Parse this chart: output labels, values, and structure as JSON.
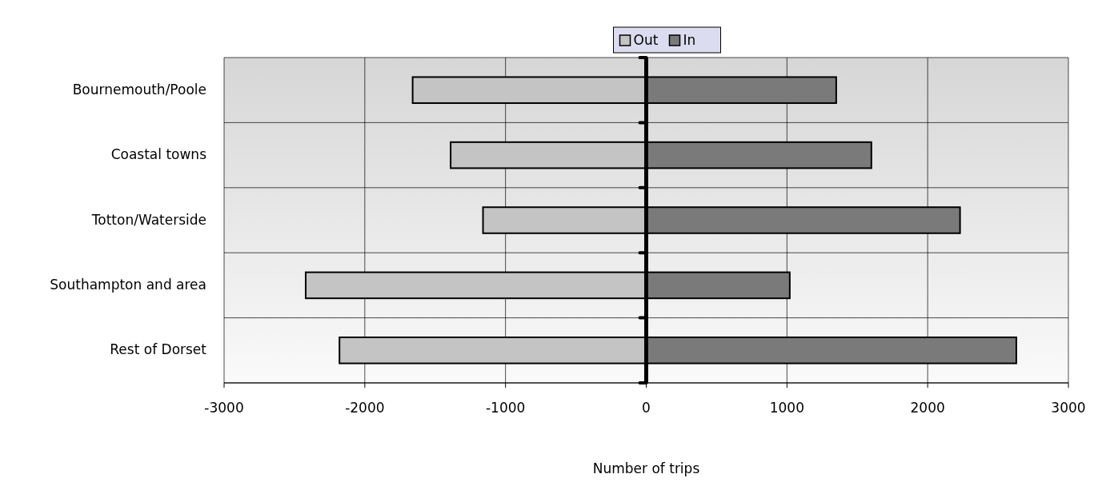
{
  "chart_data": {
    "type": "bar",
    "orientation": "horizontal",
    "stacked": true,
    "xlabel": "Number of trips",
    "categories": [
      "Bournemouth/Poole",
      "Coastal towns",
      "Totton/Waterside",
      "Southampton and area",
      "Rest of Dorset"
    ],
    "series": [
      {
        "name": "Out",
        "color": "#c4c4c4",
        "values": [
          -1660,
          -1390,
          -1160,
          -2420,
          -2180
        ]
      },
      {
        "name": "In",
        "color": "#7a7a7a",
        "values": [
          1350,
          1600,
          2230,
          1020,
          2630
        ]
      }
    ],
    "xlim": [
      -3000,
      3000
    ],
    "xticks": [
      -3000,
      -2000,
      -1000,
      0,
      1000,
      2000,
      3000
    ],
    "grid": true,
    "legend": "top"
  }
}
